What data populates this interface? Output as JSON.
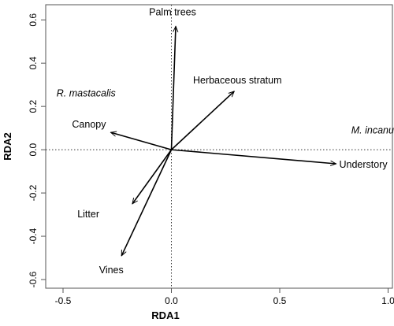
{
  "chart_data": {
    "type": "scatter",
    "subtype": "rda-biplot",
    "title": "",
    "xlabel": "RDA1",
    "ylabel": "RDA2",
    "xlim": [
      -0.58,
      1.02
    ],
    "ylim": [
      -0.64,
      0.67
    ],
    "x_ticks": [
      -0.5,
      0.0,
      0.5,
      1.0
    ],
    "x_tick_labels": [
      "-0.5",
      "0.0",
      "0.5",
      "1.0"
    ],
    "y_ticks": [
      -0.6,
      -0.4,
      -0.2,
      0.0,
      0.2,
      0.4,
      0.6
    ],
    "y_tick_labels": [
      "-0.6",
      "-0.4",
      "-0.2",
      "0.0",
      "0.2",
      "0.4",
      "0.6"
    ],
    "reference_lines": {
      "x": 0,
      "y": 0,
      "style": "dotted"
    },
    "grid": false,
    "arrows": [
      {
        "label": "Palm trees",
        "x": 0.02,
        "y": 0.57
      },
      {
        "label": "Herbaceous stratum",
        "x": 0.29,
        "y": 0.27
      },
      {
        "label": "Canopy",
        "x": -0.28,
        "y": 0.08
      },
      {
        "label": "Understory",
        "x": 0.76,
        "y": -0.065
      },
      {
        "label": "Litter",
        "x": -0.18,
        "y": -0.25
      },
      {
        "label": "Vines",
        "x": -0.23,
        "y": -0.49
      }
    ],
    "species": [
      {
        "label": "R. mastacalis",
        "x": -0.53,
        "y": 0.26
      },
      {
        "label": "M. incanus",
        "x": 0.83,
        "y": 0.09
      }
    ]
  }
}
